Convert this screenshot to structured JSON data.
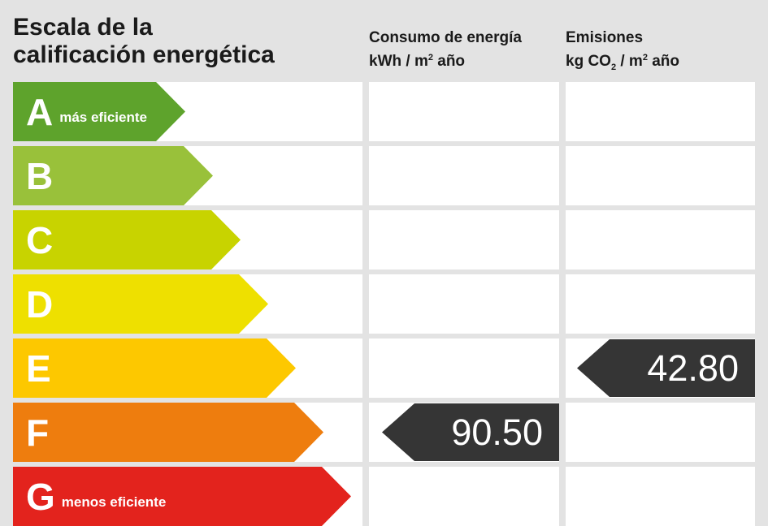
{
  "title_line1": "Escala de la",
  "title_line2": "calificación energética",
  "consumption": {
    "heading": "Consumo de energía",
    "unit_pre": "kWh / m",
    "unit_sup": "2",
    "unit_post": " año",
    "value": "90.50",
    "rating": "F"
  },
  "emissions": {
    "heading": "Emisiones",
    "unit_pre": "kg CO",
    "unit_sub": "2",
    "unit_mid": " / m",
    "unit_sup": "2",
    "unit_post": " año",
    "value": "42.80",
    "rating": "E"
  },
  "ratings": [
    {
      "letter": "A",
      "label": "más eficiente",
      "color": "#5ea32c"
    },
    {
      "letter": "B",
      "label": "",
      "color": "#99c13a"
    },
    {
      "letter": "C",
      "label": "",
      "color": "#c8d300"
    },
    {
      "letter": "D",
      "label": "",
      "color": "#eee000"
    },
    {
      "letter": "E",
      "label": "",
      "color": "#fdc800"
    },
    {
      "letter": "F",
      "label": "",
      "color": "#ee7d0e"
    },
    {
      "letter": "G",
      "label": "menos eficiente",
      "color": "#e3231d"
    }
  ],
  "indicator_color": "#353535"
}
